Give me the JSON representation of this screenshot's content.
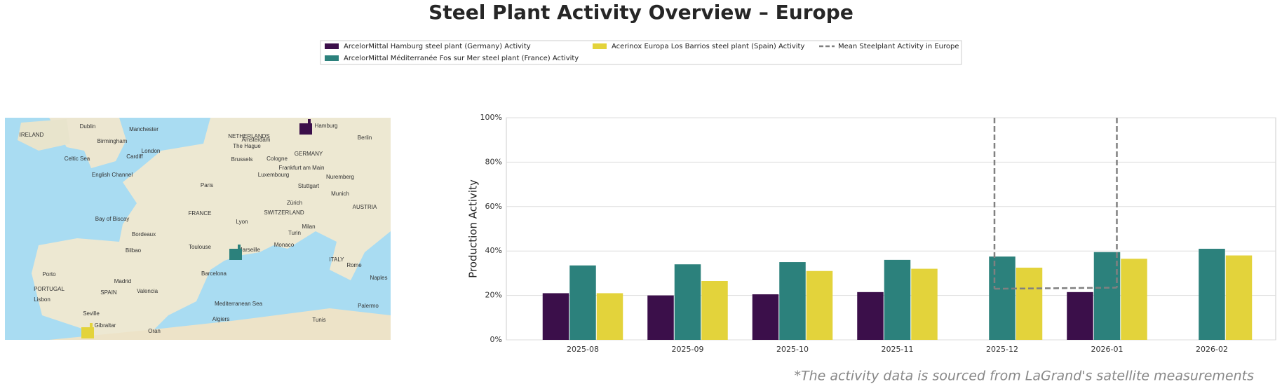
{
  "title": "Steel Plant Activity Overview – Europe",
  "footnote": "*The activity data is sourced from LaGrand's satellite measurements",
  "map": {
    "labels": [
      "IRELAND",
      "Dublin",
      "Manchester",
      "Birmingham",
      "London",
      "Cardiff",
      "NETHERLANDS",
      "Amsterdam",
      "The Hague",
      "Brussels",
      "GERMANY",
      "Hamburg",
      "Berlin",
      "Cologne",
      "Frankfurt am Main",
      "Luxembourg",
      "Nuremberg",
      "Paris",
      "Stuttgart",
      "Munich",
      "Zürich",
      "FRANCE",
      "SWITZERLAND",
      "AUSTRIA",
      "Lyon",
      "Milan",
      "Turin",
      "Bordeaux",
      "Toulouse",
      "Marseille",
      "Monaco",
      "Bilbao",
      "ITALY",
      "Rome",
      "Naples",
      "Barcelona",
      "Madrid",
      "Valencia",
      "SPAIN",
      "PORTUGAL",
      "Lisbon",
      "Porto",
      "Seville",
      "Gibraltar",
      "Algiers",
      "Oran",
      "Tunis",
      "Palermo",
      "Mediterranean Sea",
      "Bay of Biscay",
      "Celtic Sea",
      "English Channel"
    ]
  },
  "chart_data": {
    "type": "bar",
    "y_label": "Production Activity",
    "categories": [
      "2025-08",
      "2025-09",
      "2025-10",
      "2025-11",
      "2025-12",
      "2026-01",
      "2026-02"
    ],
    "series": [
      {
        "name": "ArcelorMittal Hamburg steel plant (Germany) Activity",
        "color": "#3b0f4a",
        "values": [
          21,
          20,
          20.5,
          21.5,
          null,
          21.5,
          null
        ]
      },
      {
        "name": "ArcelorMittal Méditerranée Fos sur Mer steel plant (France) Activity",
        "color": "#2c817c",
        "values": [
          33.5,
          34,
          35,
          36,
          37.5,
          39.5,
          41
        ]
      },
      {
        "name": "Acerinox Europa Los Barrios steel plant (Spain) Activity",
        "color": "#e3d33b",
        "values": [
          21,
          26.5,
          31,
          32,
          32.5,
          36.5,
          38
        ]
      },
      {
        "name": "Mean Steelplant Activity in Europe",
        "type": "line",
        "color": "#808080",
        "dashed": true,
        "values": [
          null,
          null,
          null,
          null,
          23,
          23.5,
          null
        ]
      }
    ],
    "ylim": [
      0,
      100
    ],
    "yticks": [
      {
        "value": 0,
        "label": "0%"
      },
      {
        "value": 20,
        "label": "20%"
      },
      {
        "value": 40,
        "label": "40%"
      },
      {
        "value": 60,
        "label": "60%"
      },
      {
        "value": 80,
        "label": "80%"
      },
      {
        "value": 100,
        "label": "100%"
      }
    ],
    "grid": true
  }
}
